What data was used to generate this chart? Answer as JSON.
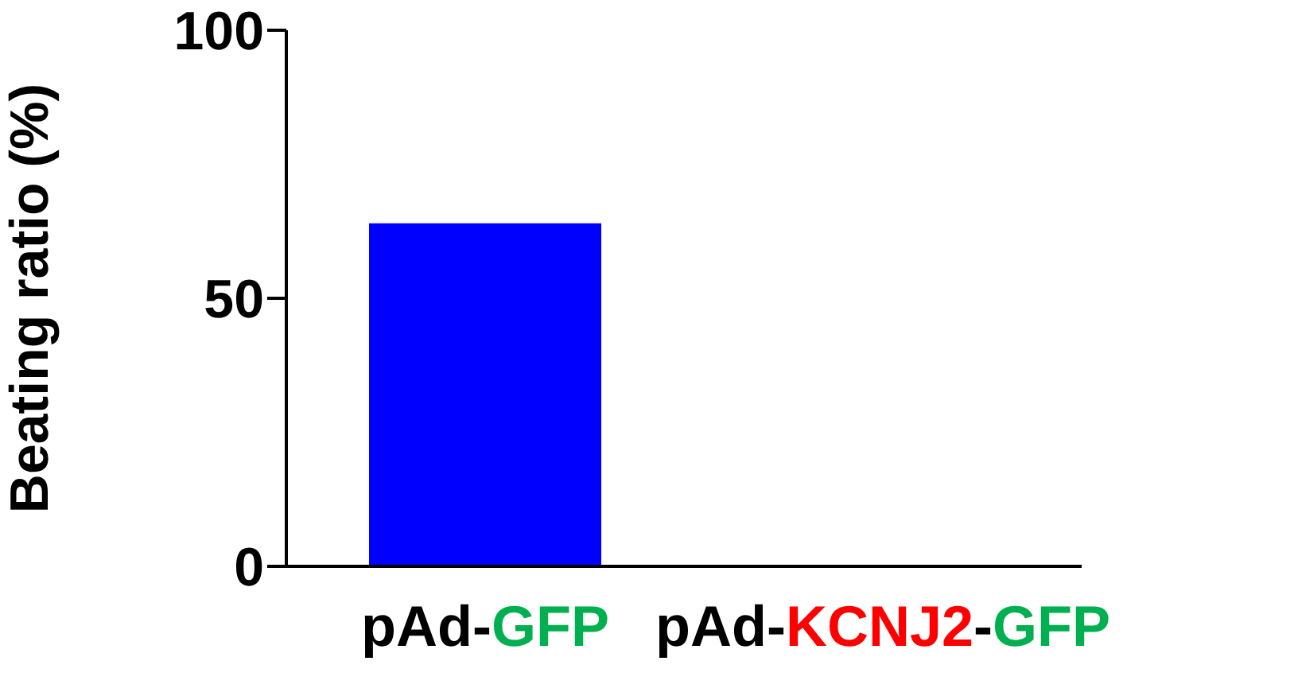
{
  "chart_data": {
    "type": "bar",
    "ylabel": "Beating ratio (%)",
    "categories": [
      "pAd-GFP",
      "pAd-KCNJ2-GFP"
    ],
    "values": [
      64,
      0
    ],
    "color": "#0000ff",
    "ylim": [
      0,
      100
    ],
    "yticks": [
      0,
      50,
      100
    ],
    "grid": false,
    "legend": false
  }
}
